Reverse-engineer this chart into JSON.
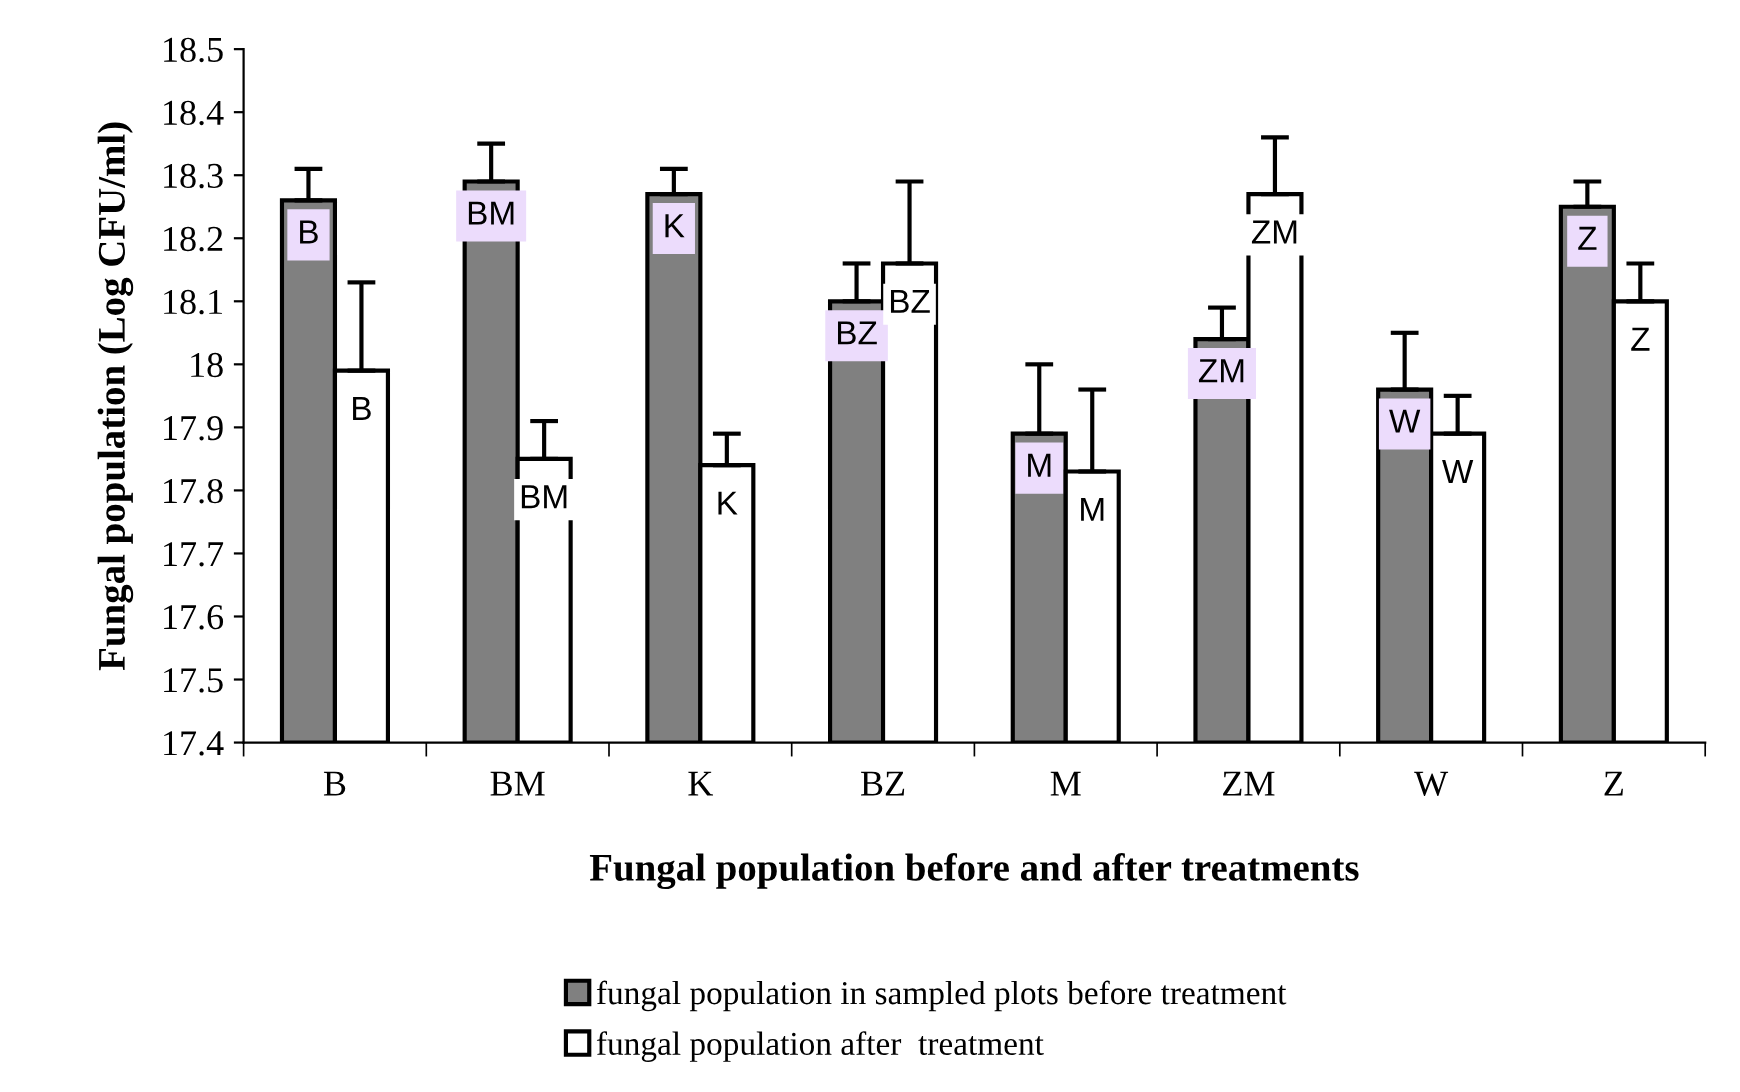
{
  "chart_data": {
    "type": "bar",
    "xlabel": "Fungal population before and after treatments",
    "ylabel": "Fungal population (Log CFU/ml)",
    "categories": [
      "B",
      "BM",
      "K",
      "BZ",
      "M",
      "ZM",
      "W",
      "Z"
    ],
    "series": [
      {
        "name": "fungal population in sampled plots before treatment",
        "color": "#808080",
        "values": [
          18.26,
          18.29,
          18.27,
          18.1,
          17.89,
          18.04,
          17.96,
          18.25
        ],
        "errors": [
          [
            18.26,
            18.31
          ],
          [
            18.29,
            18.35
          ],
          [
            18.27,
            18.31
          ],
          [
            18.1,
            18.16
          ],
          [
            17.89,
            18.0
          ],
          [
            18.04,
            18.09
          ],
          [
            17.96,
            18.05
          ],
          [
            18.25,
            18.29
          ]
        ],
        "value_labels": [
          "B",
          "BM",
          "K",
          "BZ",
          "M",
          "ZM",
          "W",
          "Z"
        ]
      },
      {
        "name": "fungal population after  treatment",
        "color": "#ffffff",
        "values": [
          17.99,
          17.85,
          17.84,
          18.16,
          17.83,
          18.27,
          17.89,
          18.1
        ],
        "errors": [
          [
            17.99,
            18.13
          ],
          [
            17.85,
            17.91
          ],
          [
            17.84,
            17.89
          ],
          [
            18.16,
            18.29
          ],
          [
            17.83,
            17.96
          ],
          [
            18.27,
            18.36
          ],
          [
            17.89,
            17.95
          ],
          [
            18.1,
            18.16
          ]
        ],
        "value_labels": [
          "B",
          "BM",
          "K",
          "BZ",
          "M",
          "ZM",
          "W",
          "Z"
        ]
      }
    ],
    "ylim": [
      17.4,
      18.5
    ],
    "yticks": [
      17.4,
      17.5,
      17.6,
      17.7,
      17.8,
      17.9,
      18,
      18.1,
      18.2,
      18.3,
      18.4,
      18.5
    ],
    "grid": false,
    "legend": "bottom"
  }
}
